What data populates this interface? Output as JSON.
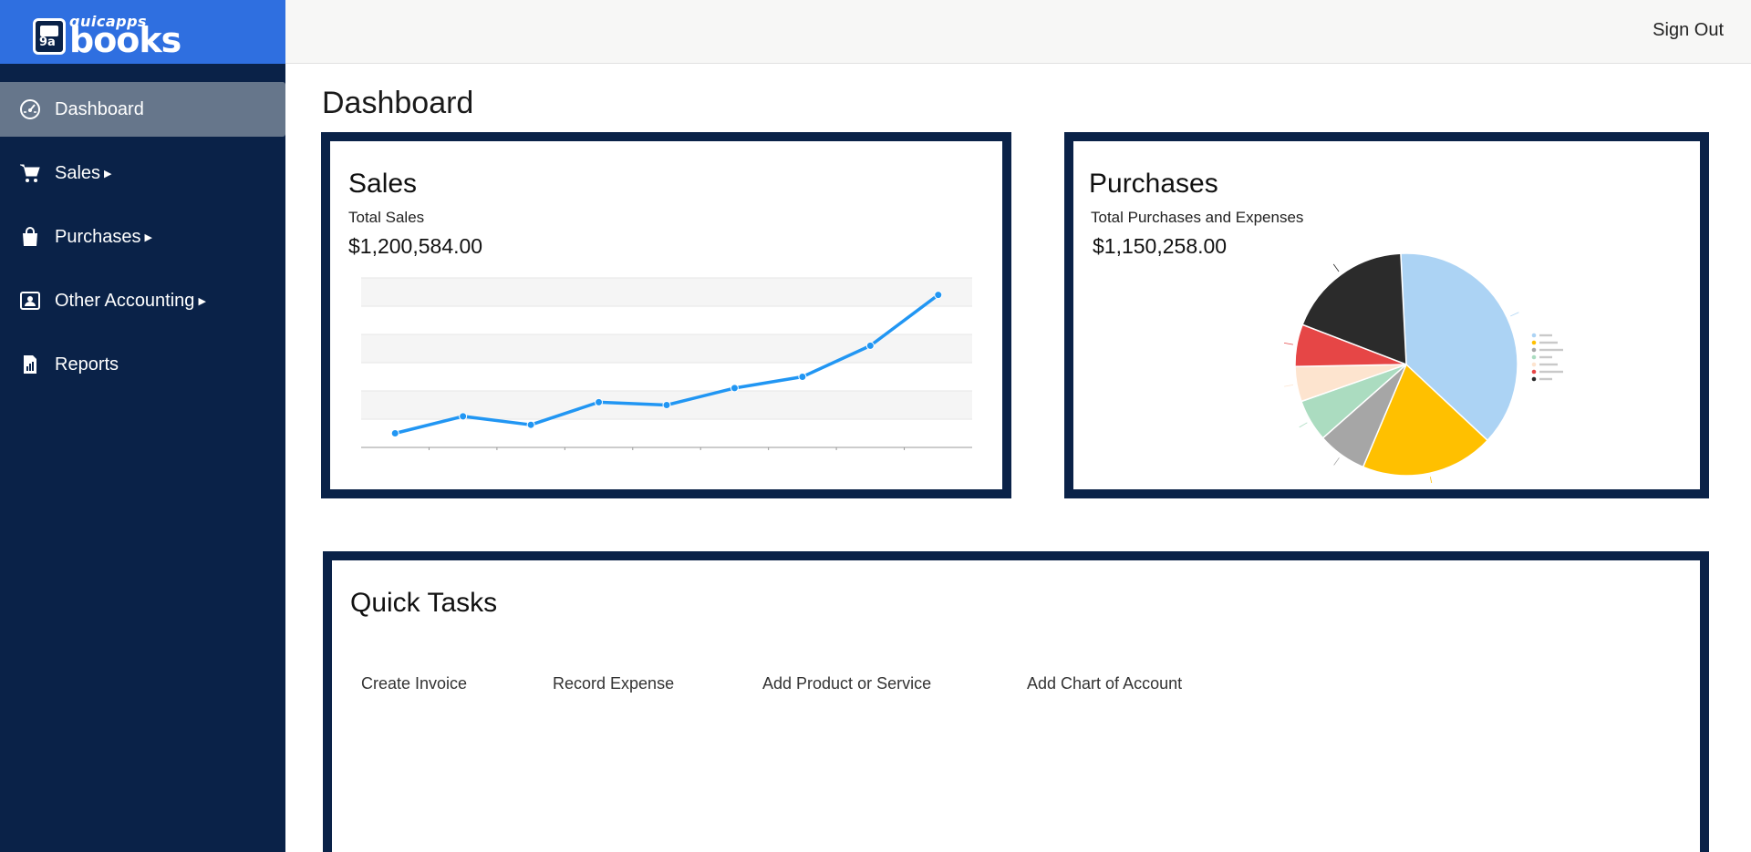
{
  "app": {
    "logo_small": "quicapps",
    "logo_big": "books",
    "signout_label": "Sign Out"
  },
  "sidebar": {
    "items": [
      {
        "label": "Dashboard",
        "icon": "dashboard-gauge-icon",
        "active": true
      },
      {
        "label": "Sales",
        "icon": "cart-icon",
        "submenu": true
      },
      {
        "label": "Purchases",
        "icon": "shopping-bag-icon",
        "submenu": true
      },
      {
        "label": "Other Accounting",
        "icon": "accounting-icon",
        "submenu": true
      },
      {
        "label": "Reports",
        "icon": "report-icon"
      }
    ]
  },
  "page": {
    "title": "Dashboard"
  },
  "sales": {
    "title": "Sales",
    "subtitle": "Total Sales",
    "amount": "$1,200,584.00"
  },
  "purchases": {
    "title": "Purchases",
    "subtitle": "Total Purchases and Expenses",
    "amount": "$1,150,258.00"
  },
  "quick_tasks": {
    "title": "Quick Tasks",
    "items": [
      "Create Invoice",
      "Record Expense",
      "Add Product or Service",
      "Add Chart of Account"
    ]
  },
  "colors": {
    "sidebar": "#0a2248",
    "logo_bar": "#2f6fe0",
    "line": "#2196f3"
  },
  "chart_data": [
    {
      "type": "line",
      "x": [
        1,
        2,
        3,
        4,
        5,
        6,
        7,
        8,
        9
      ],
      "series": [
        {
          "values": [
            5,
            11,
            8,
            16,
            15,
            21,
            25,
            36,
            54
          ]
        }
      ],
      "ylim": [
        0,
        60
      ],
      "grid": true
    },
    {
      "type": "pie",
      "values": [
        37,
        19,
        7,
        6,
        5,
        6,
        18
      ],
      "colors": [
        "#acd3f4",
        "#ffc000",
        "#a6a6a6",
        "#abdcc0",
        "#fde4cf",
        "#e64646",
        "#2b2b2b"
      ]
    }
  ]
}
